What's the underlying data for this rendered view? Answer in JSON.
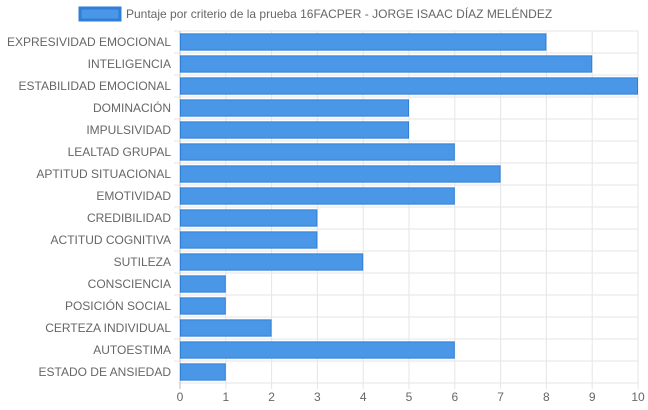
{
  "chart_data": {
    "type": "bar",
    "orientation": "horizontal",
    "title": "",
    "xlabel": "",
    "ylabel": "",
    "xlim": [
      0,
      10
    ],
    "x_ticks": [
      0,
      1,
      2,
      3,
      4,
      5,
      6,
      7,
      8,
      9,
      10
    ],
    "grid": true,
    "legend_position": "top",
    "colors": {
      "bar_fill": "#4a97e8",
      "bar_stroke": "#2f7fd6",
      "grid": "#e5e5e5",
      "text": "#666666"
    },
    "categories": [
      "EXPRESIVIDAD EMOCIONAL",
      "INTELIGENCIA",
      "ESTABILIDAD EMOCIONAL",
      "DOMINACIÓN",
      "IMPULSIVIDAD",
      "LEALTAD GRUPAL",
      "APTITUD SITUACIONAL",
      "EMOTIVIDAD",
      "CREDIBILIDAD",
      "ACTITUD COGNITIVA",
      "SUTILEZA",
      "CONSCIENCIA",
      "POSICIÓN SOCIAL",
      "CERTEZA INDIVIDUAL",
      "AUTOESTIMA",
      "ESTADO DE ANSIEDAD"
    ],
    "series": [
      {
        "name": "Puntaje por criterio de la prueba 16FACPER - JORGE ISAAC DÍAZ MELÉNDEZ",
        "values": [
          8,
          9,
          10,
          5,
          5,
          6,
          7,
          6,
          3,
          3,
          4,
          1,
          1,
          2,
          6,
          1
        ]
      }
    ]
  }
}
